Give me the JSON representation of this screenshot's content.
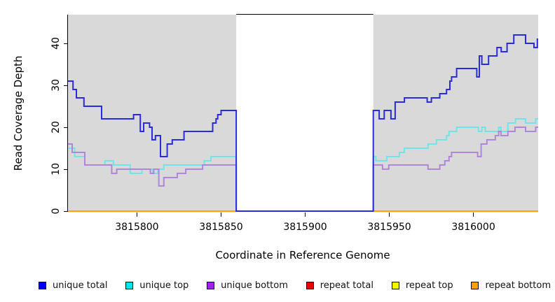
{
  "chart_data": {
    "type": "line",
    "subtype": "step-coverage-plot",
    "title": "",
    "xlabel": "Coordinate in Reference Genome",
    "ylabel": "Read Coverage Depth",
    "x_range": [
      3815759,
      3816038.5
    ],
    "y_range": [
      0,
      47
    ],
    "x_ticks": [
      3815800,
      3815850,
      3815900,
      3815950,
      3816000
    ],
    "x_tick_labels": [
      "3815800",
      "3815850",
      "3815900",
      "3815950",
      "3816000"
    ],
    "y_ticks": [
      0,
      10,
      20,
      30,
      40
    ],
    "y_tick_labels": [
      "0",
      "10",
      "20",
      "30",
      "40"
    ],
    "grid": false,
    "legend_position": "bottom",
    "panel_background": "#ffffff",
    "shaded_regions": [
      {
        "name": "left-gray-region",
        "from": 3815759,
        "to": 3815859,
        "color": "#D9D9D9"
      },
      {
        "name": "right-gray-region",
        "from": 3815940.5,
        "to": 3816038.5,
        "color": "#D9D9D9"
      }
    ],
    "gap_region": {
      "name": "zero-coverage-gap",
      "from": 3815859,
      "to": 3815940.5,
      "color": "#ffffff"
    },
    "series": [
      {
        "name": "unique total",
        "color": "#2B2BDE",
        "legend_color": "#0000EE",
        "width": 2,
        "points": [
          [
            3815759,
            31
          ],
          [
            3815762,
            29
          ],
          [
            3815764,
            27
          ],
          [
            3815768.5,
            25
          ],
          [
            3815779,
            22
          ],
          [
            3815798,
            23
          ],
          [
            3815802,
            19
          ],
          [
            3815804,
            21
          ],
          [
            3815807.5,
            20
          ],
          [
            3815809,
            17
          ],
          [
            3815811,
            18
          ],
          [
            3815814,
            13
          ],
          [
            3815818,
            16
          ],
          [
            3815821,
            17
          ],
          [
            3815828,
            19
          ],
          [
            3815845,
            21
          ],
          [
            3815847,
            22
          ],
          [
            3815848,
            23
          ],
          [
            3815850,
            24
          ],
          [
            3815859,
            0
          ],
          [
            3815940.5,
            24
          ],
          [
            3815944,
            22
          ],
          [
            3815947,
            24
          ],
          [
            3815951,
            22
          ],
          [
            3815953.5,
            26
          ],
          [
            3815959,
            27
          ],
          [
            3815972.5,
            26
          ],
          [
            3815975,
            27
          ],
          [
            3815980,
            28
          ],
          [
            3815984,
            29
          ],
          [
            3815986,
            31
          ],
          [
            3815987,
            32
          ],
          [
            3815990,
            34
          ],
          [
            3816002,
            32
          ],
          [
            3816003.5,
            37
          ],
          [
            3816005,
            35
          ],
          [
            3816009,
            37
          ],
          [
            3816014,
            39
          ],
          [
            3816016.5,
            38
          ],
          [
            3816020,
            40
          ],
          [
            3816024,
            42
          ],
          [
            3816031,
            40
          ],
          [
            3816036,
            39
          ],
          [
            3816038,
            41
          ],
          [
            3816038.5,
            41
          ]
        ]
      },
      {
        "name": "unique top",
        "color": "#70E4E8",
        "legend_color": "#00E5EE",
        "width": 2,
        "points": [
          [
            3815759,
            15
          ],
          [
            3815763,
            13
          ],
          [
            3815769,
            11
          ],
          [
            3815781,
            12
          ],
          [
            3815786,
            11
          ],
          [
            3815796,
            9
          ],
          [
            3815803,
            10
          ],
          [
            3815809.5,
            9
          ],
          [
            3815812.5,
            10
          ],
          [
            3815816,
            11
          ],
          [
            3815840,
            12
          ],
          [
            3815844,
            13
          ],
          [
            3815859,
            0
          ],
          [
            3815940.5,
            13
          ],
          [
            3815942,
            12
          ],
          [
            3815948.5,
            13
          ],
          [
            3815956,
            14
          ],
          [
            3815959,
            15
          ],
          [
            3815973,
            16
          ],
          [
            3815978,
            17
          ],
          [
            3815984,
            18
          ],
          [
            3815985.5,
            19
          ],
          [
            3815990,
            20
          ],
          [
            3816003,
            19
          ],
          [
            3816005,
            20
          ],
          [
            3816007,
            19
          ],
          [
            3816015,
            20
          ],
          [
            3816016.4,
            19
          ],
          [
            3816020.5,
            21
          ],
          [
            3816025,
            22
          ],
          [
            3816031,
            21
          ],
          [
            3816037,
            22
          ],
          [
            3816038.5,
            22
          ]
        ]
      },
      {
        "name": "unique bottom",
        "color": "#AF86DC",
        "legend_color": "#A020F0",
        "width": 2,
        "points": [
          [
            3815759,
            16
          ],
          [
            3815761.5,
            14
          ],
          [
            3815769,
            11
          ],
          [
            3815785,
            9
          ],
          [
            3815788,
            10
          ],
          [
            3815808,
            9
          ],
          [
            3815810,
            10
          ],
          [
            3815813,
            6
          ],
          [
            3815816,
            8
          ],
          [
            3815824,
            9
          ],
          [
            3815829,
            10
          ],
          [
            3815839,
            11
          ],
          [
            3815859,
            0
          ],
          [
            3815940.5,
            11
          ],
          [
            3815946,
            10
          ],
          [
            3815949.7,
            11
          ],
          [
            3815973,
            10
          ],
          [
            3815980,
            11
          ],
          [
            3815983,
            12
          ],
          [
            3815985.5,
            13
          ],
          [
            3815987,
            14
          ],
          [
            3816002.5,
            13
          ],
          [
            3816004.6,
            16
          ],
          [
            3816008,
            17
          ],
          [
            3816013,
            18
          ],
          [
            3816015,
            19
          ],
          [
            3816016.4,
            18
          ],
          [
            3816020.5,
            19
          ],
          [
            3816024.7,
            20
          ],
          [
            3816031,
            19
          ],
          [
            3816037,
            20
          ],
          [
            3816038.5,
            20
          ]
        ]
      },
      {
        "name": "repeat total",
        "color": "#EE0000",
        "legend_color": "#EE0000",
        "width": 2,
        "points": [
          [
            3815759,
            0
          ],
          [
            3816038.5,
            0
          ]
        ]
      },
      {
        "name": "repeat top",
        "color": "#FFFF00",
        "legend_color": "#F5F500",
        "width": 2,
        "points": [
          [
            3815759,
            0
          ],
          [
            3816038.5,
            0
          ]
        ]
      },
      {
        "name": "repeat bottom",
        "color": "#FFA500",
        "legend_color": "#FFA200",
        "width": 2,
        "points": [
          [
            3815759,
            0
          ],
          [
            3816038.5,
            0
          ]
        ]
      }
    ]
  },
  "legend": {
    "items": [
      {
        "label": "unique total",
        "color": "#0000EE"
      },
      {
        "label": "unique top",
        "color": "#00E5EE"
      },
      {
        "label": "unique bottom",
        "color": "#A020F0"
      },
      {
        "label": "repeat total",
        "color": "#EE0000"
      },
      {
        "label": "repeat top",
        "color": "#F5F500"
      },
      {
        "label": "repeat bottom",
        "color": "#FFA200"
      }
    ]
  }
}
